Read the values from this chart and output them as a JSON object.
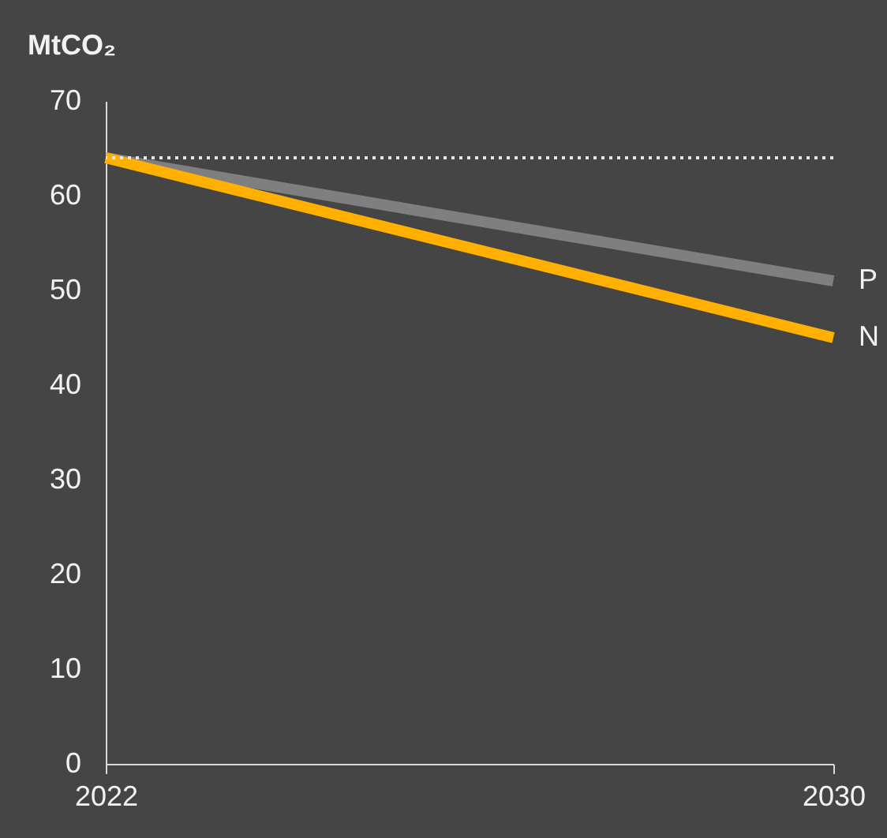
{
  "chart_data": {
    "type": "line",
    "ylabel": "MtCO₂",
    "x": [
      2022,
      2030
    ],
    "series": [
      {
        "name": "P",
        "color": "#7f7f7f",
        "values": [
          64,
          51
        ]
      },
      {
        "name": "N",
        "color": "#ffb000",
        "values": [
          64,
          45
        ]
      }
    ],
    "xlim": [
      2022,
      2030
    ],
    "xticks": [
      2022,
      2030
    ],
    "ylim": [
      0,
      70
    ],
    "yticks": [
      0,
      10,
      20,
      30,
      40,
      50,
      60,
      70
    ],
    "ref_lines": [
      {
        "axis": "y",
        "value": 64,
        "label": null,
        "color": "#e6e6e6",
        "line_style": "dotted"
      }
    ],
    "grid": false,
    "marker": "none",
    "line_style": "solid"
  }
}
